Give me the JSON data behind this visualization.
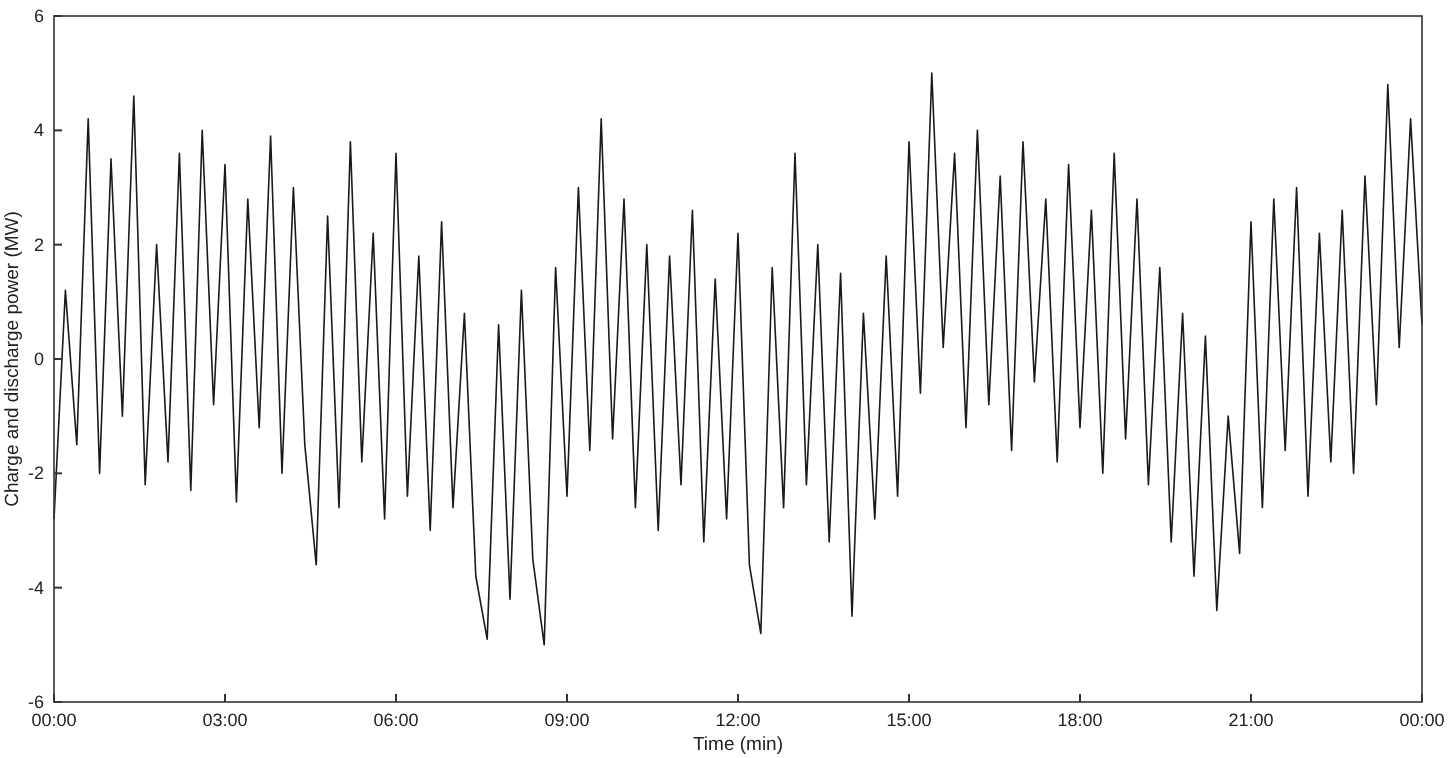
{
  "chart_data": {
    "type": "line",
    "xlabel": "Time (min)",
    "ylabel": "Charge and discharge power (MW)",
    "color": "#1a1a1a",
    "xlim": [
      0,
      24
    ],
    "xticks": [
      {
        "value": 0,
        "label": "00:00"
      },
      {
        "value": 3,
        "label": "03:00"
      },
      {
        "value": 6,
        "label": "06:00"
      },
      {
        "value": 9,
        "label": "09:00"
      },
      {
        "value": 12,
        "label": "12:00"
      },
      {
        "value": 15,
        "label": "15:00"
      },
      {
        "value": 18,
        "label": "18:00"
      },
      {
        "value": 21,
        "label": "21:00"
      },
      {
        "value": 24,
        "label": "00:00"
      }
    ],
    "ylim": [
      -6,
      6
    ],
    "yticks": [
      -6,
      -4,
      -2,
      0,
      2,
      4,
      6
    ],
    "x": [
      0,
      0.2,
      0.4,
      0.6,
      0.8,
      1,
      1.2,
      1.4,
      1.6,
      1.8,
      2,
      2.2,
      2.4,
      2.6,
      2.8,
      3,
      3.2,
      3.4,
      3.6,
      3.8,
      4,
      4.2,
      4.4,
      4.6,
      4.8,
      5,
      5.2,
      5.4,
      5.6,
      5.8,
      6,
      6.2,
      6.4,
      6.6,
      6.8,
      7,
      7.2,
      7.4,
      7.6,
      7.8,
      8,
      8.2,
      8.4,
      8.6,
      8.8,
      9,
      9.2,
      9.4,
      9.6,
      9.8,
      10,
      10.2,
      10.4,
      10.6,
      10.8,
      11,
      11.2,
      11.4,
      11.6,
      11.8,
      12,
      12.2,
      12.4,
      12.6,
      12.8,
      13,
      13.2,
      13.4,
      13.6,
      13.8,
      14,
      14.2,
      14.4,
      14.6,
      14.8,
      15,
      15.2,
      15.4,
      15.6,
      15.8,
      16,
      16.2,
      16.4,
      16.6,
      16.8,
      17,
      17.2,
      17.4,
      17.6,
      17.8,
      18,
      18.2,
      18.4,
      18.6,
      18.8,
      19,
      19.2,
      19.4,
      19.6,
      19.8,
      20,
      20.2,
      20.4,
      20.6,
      20.8,
      21,
      21.2,
      21.4,
      21.6,
      21.8,
      22,
      22.2,
      22.4,
      22.6,
      22.8,
      23,
      23.2,
      23.4,
      23.6,
      23.8,
      24
    ],
    "values": [
      -2.8,
      1.2,
      -1.5,
      4.2,
      -2,
      3.5,
      -1,
      4.6,
      -2.2,
      2,
      -1.8,
      3.6,
      -2.3,
      4,
      -0.8,
      3.4,
      -2.5,
      2.8,
      -1.2,
      3.9,
      -2,
      3,
      -1.5,
      -3.6,
      2.5,
      -2.6,
      3.8,
      -1.8,
      2.2,
      -2.8,
      3.6,
      -2.4,
      1.8,
      -3,
      2.4,
      -2.6,
      0.8,
      -3.8,
      -4.9,
      0.6,
      -4.2,
      1.2,
      -3.5,
      -5,
      1.6,
      -2.4,
      3,
      -1.6,
      4.2,
      -1.4,
      2.8,
      -2.6,
      2,
      -3,
      1.8,
      -2.2,
      2.6,
      -3.2,
      1.4,
      -2.8,
      2.2,
      -3.6,
      -4.8,
      1.6,
      -2.6,
      3.6,
      -2.2,
      2,
      -3.2,
      1.5,
      -4.5,
      0.8,
      -2.8,
      1.8,
      -2.4,
      3.8,
      -0.6,
      5,
      0.2,
      3.6,
      -1.2,
      4,
      -0.8,
      3.2,
      -1.6,
      3.8,
      -0.4,
      2.8,
      -1.8,
      3.4,
      -1.2,
      2.6,
      -2,
      3.6,
      -1.4,
      2.8,
      -2.2,
      1.6,
      -3.2,
      0.8,
      -3.8,
      0.4,
      -4.4,
      -1,
      -3.4,
      2.4,
      -2.6,
      2.8,
      -1.6,
      3,
      -2.4,
      2.2,
      -1.8,
      2.6,
      -2,
      3.2,
      -0.8,
      4.8,
      0.2,
      4.2,
      0.6
    ]
  }
}
